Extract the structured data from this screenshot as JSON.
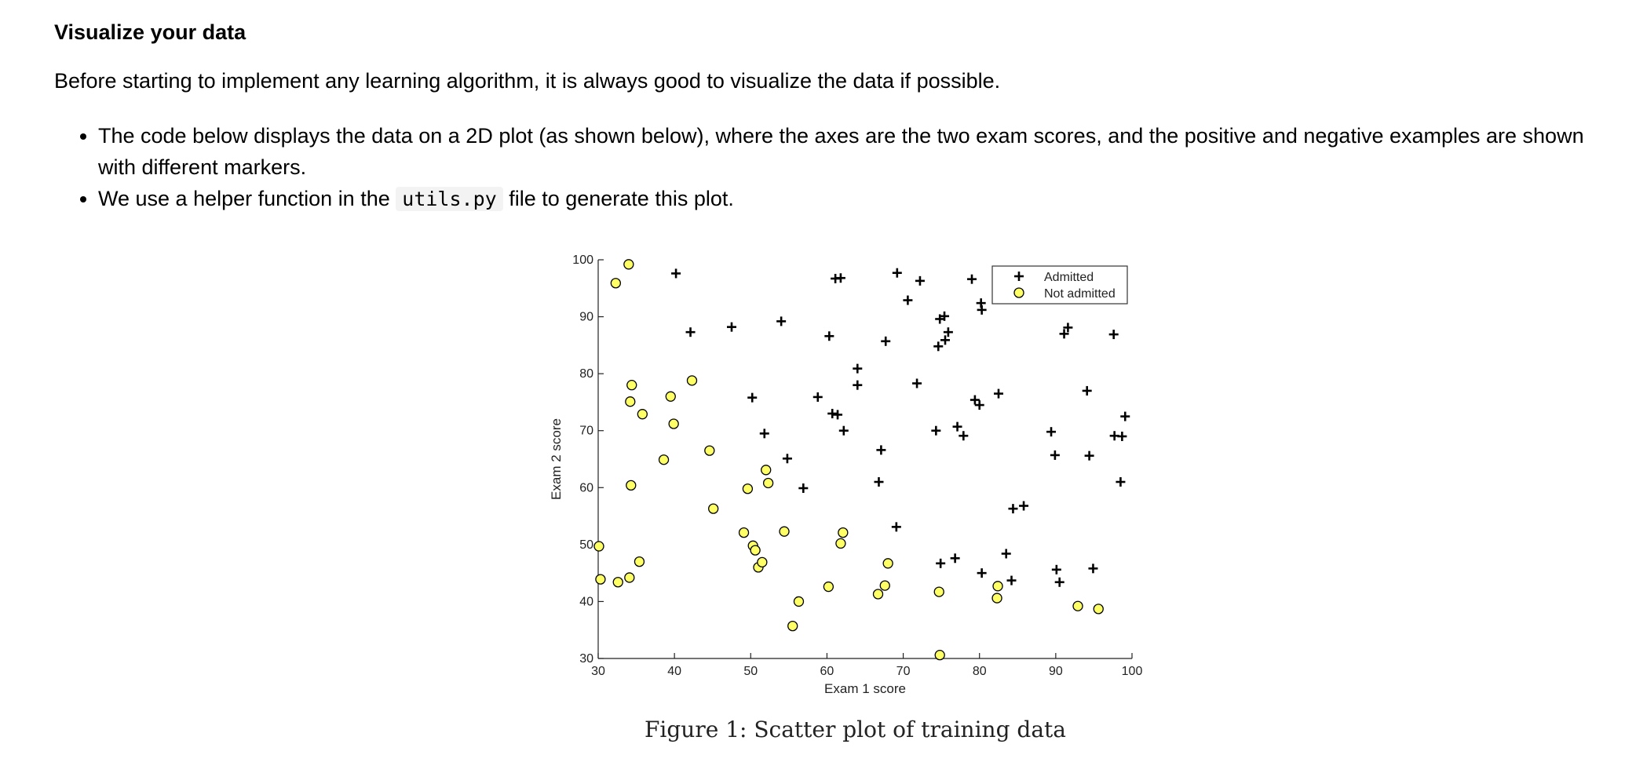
{
  "section": {
    "heading": "Visualize your data",
    "intro": "Before starting to implement any learning algorithm, it is always good to visualize the data if possible.",
    "bullets": [
      {
        "text": "The code below displays the data on a 2D plot (as shown below), where the axes are the two exam scores, and the positive and negative examples are shown with different markers."
      },
      {
        "before": "We use a helper function in the",
        "code": "utils.py",
        "after": "file to generate this plot."
      }
    ]
  },
  "figure": {
    "caption": "Figure 1: Scatter plot of training data"
  },
  "chart_data": {
    "type": "scatter",
    "title": "",
    "xlabel": "Exam 1 score",
    "ylabel": "Exam 2 score",
    "xlim": [
      30,
      100
    ],
    "ylim": [
      30,
      100
    ],
    "xticks": [
      30,
      40,
      50,
      60,
      70,
      80,
      90,
      100
    ],
    "yticks": [
      30,
      40,
      50,
      60,
      70,
      80,
      90,
      100
    ],
    "grid": false,
    "legend_position": "top-right",
    "series": [
      {
        "name": "Admitted",
        "marker": "plus",
        "color": "#000000",
        "points": [
          [
            40.2,
            97.6
          ],
          [
            42.1,
            87.3
          ],
          [
            47.5,
            88.2
          ],
          [
            54.0,
            89.2
          ],
          [
            60.3,
            86.6
          ],
          [
            61.1,
            96.7
          ],
          [
            61.8,
            96.8
          ],
          [
            69.2,
            97.7
          ],
          [
            70.6,
            92.9
          ],
          [
            72.2,
            96.3
          ],
          [
            79.0,
            96.6
          ],
          [
            80.2,
            92.4
          ],
          [
            80.3,
            91.2
          ],
          [
            67.7,
            85.7
          ],
          [
            74.8,
            89.6
          ],
          [
            75.4,
            90.1
          ],
          [
            75.9,
            87.3
          ],
          [
            75.5,
            85.9
          ],
          [
            74.6,
            84.8
          ],
          [
            91.1,
            87.0
          ],
          [
            91.6,
            88.1
          ],
          [
            97.6,
            86.9
          ],
          [
            64.0,
            80.9
          ],
          [
            64.0,
            78.0
          ],
          [
            71.8,
            78.3
          ],
          [
            50.2,
            75.8
          ],
          [
            58.8,
            75.9
          ],
          [
            60.7,
            73.0
          ],
          [
            61.4,
            72.8
          ],
          [
            62.2,
            70.0
          ],
          [
            51.8,
            69.5
          ],
          [
            54.8,
            65.1
          ],
          [
            56.9,
            59.9
          ],
          [
            67.1,
            66.6
          ],
          [
            66.8,
            61.0
          ],
          [
            74.3,
            70.0
          ],
          [
            77.1,
            70.7
          ],
          [
            77.9,
            69.1
          ],
          [
            79.4,
            75.4
          ],
          [
            80.0,
            74.5
          ],
          [
            82.5,
            76.5
          ],
          [
            89.4,
            69.8
          ],
          [
            89.9,
            65.7
          ],
          [
            94.1,
            77.0
          ],
          [
            94.4,
            65.6
          ],
          [
            97.7,
            69.1
          ],
          [
            98.7,
            69.0
          ],
          [
            99.1,
            72.5
          ],
          [
            98.5,
            61.0
          ],
          [
            84.4,
            56.3
          ],
          [
            85.8,
            56.8
          ],
          [
            69.1,
            53.1
          ],
          [
            74.9,
            46.7
          ],
          [
            76.8,
            47.6
          ],
          [
            80.3,
            45.0
          ],
          [
            83.5,
            48.4
          ],
          [
            84.2,
            43.7
          ],
          [
            90.1,
            45.6
          ],
          [
            90.5,
            43.4
          ],
          [
            94.9,
            45.8
          ]
        ]
      },
      {
        "name": "Not admitted",
        "marker": "circle",
        "color": "#ffff66",
        "edge": "#000000",
        "points": [
          [
            34.0,
            99.2
          ],
          [
            32.3,
            95.9
          ],
          [
            34.4,
            78.0
          ],
          [
            34.2,
            75.1
          ],
          [
            35.8,
            72.9
          ],
          [
            39.5,
            76.0
          ],
          [
            42.3,
            78.8
          ],
          [
            39.9,
            71.2
          ],
          [
            38.6,
            64.9
          ],
          [
            44.6,
            66.5
          ],
          [
            34.3,
            60.4
          ],
          [
            45.1,
            56.3
          ],
          [
            49.6,
            59.8
          ],
          [
            52.0,
            63.1
          ],
          [
            52.3,
            60.8
          ],
          [
            30.1,
            49.7
          ],
          [
            30.3,
            43.9
          ],
          [
            32.6,
            43.4
          ],
          [
            34.1,
            44.2
          ],
          [
            35.4,
            47.0
          ],
          [
            49.1,
            52.1
          ],
          [
            50.3,
            49.8
          ],
          [
            50.6,
            49.0
          ],
          [
            51.0,
            46.0
          ],
          [
            51.5,
            46.9
          ],
          [
            54.4,
            52.3
          ],
          [
            56.3,
            40.0
          ],
          [
            55.5,
            35.7
          ],
          [
            60.2,
            42.6
          ],
          [
            62.1,
            52.1
          ],
          [
            61.8,
            50.2
          ],
          [
            68.0,
            46.7
          ],
          [
            67.6,
            42.8
          ],
          [
            66.7,
            41.3
          ],
          [
            74.7,
            41.7
          ],
          [
            82.4,
            42.7
          ],
          [
            82.3,
            40.6
          ],
          [
            92.9,
            39.2
          ],
          [
            95.6,
            38.7
          ],
          [
            74.8,
            30.6
          ]
        ]
      }
    ]
  }
}
